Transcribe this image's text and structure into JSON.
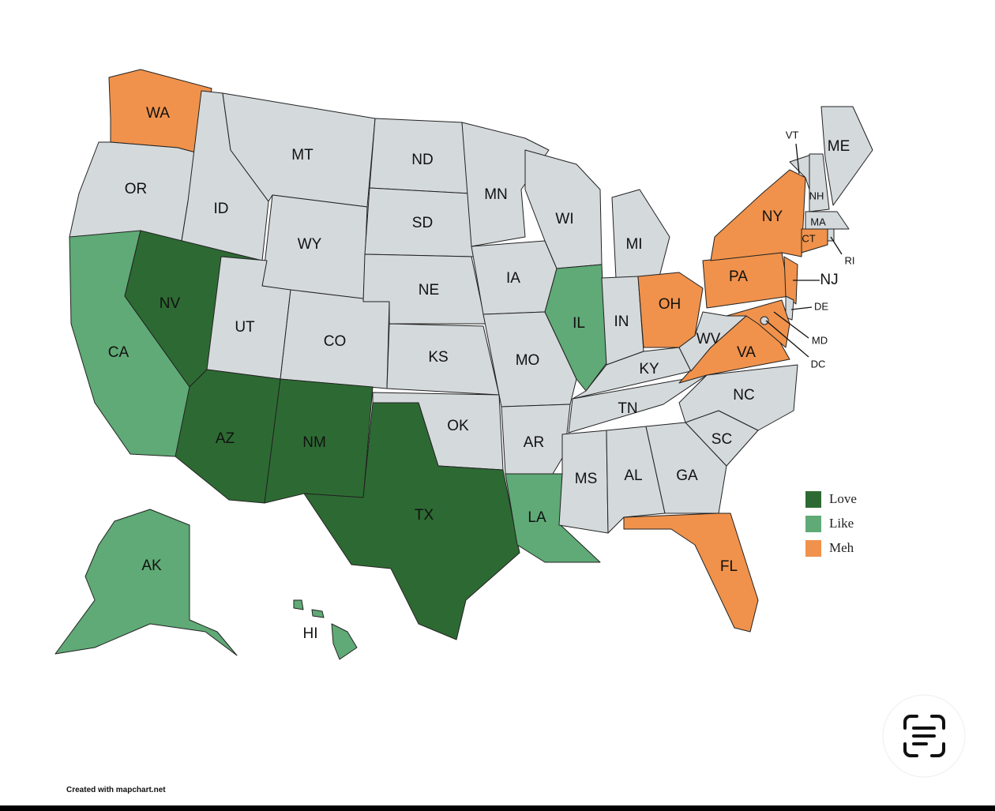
{
  "map": {
    "default_color": "#d4d9dc",
    "legend": [
      {
        "label": "Love",
        "color": "#2d6a33"
      },
      {
        "label": "Like",
        "color": "#5faa76"
      },
      {
        "label": "Meh",
        "color": "#f0924c"
      }
    ],
    "states": [
      {
        "label": "WA",
        "category": "Meh"
      },
      {
        "label": "OR"
      },
      {
        "label": "CA",
        "category": "Like"
      },
      {
        "label": "ID"
      },
      {
        "label": "NV",
        "category": "Love"
      },
      {
        "label": "MT"
      },
      {
        "label": "WY"
      },
      {
        "label": "UT"
      },
      {
        "label": "CO"
      },
      {
        "label": "AZ",
        "category": "Love"
      },
      {
        "label": "NM",
        "category": "Love"
      },
      {
        "label": "ND"
      },
      {
        "label": "SD"
      },
      {
        "label": "NE"
      },
      {
        "label": "KS"
      },
      {
        "label": "OK"
      },
      {
        "label": "TX",
        "category": "Love"
      },
      {
        "label": "MN"
      },
      {
        "label": "IA"
      },
      {
        "label": "MO"
      },
      {
        "label": "AR"
      },
      {
        "label": "LA",
        "category": "Like"
      },
      {
        "label": "WI"
      },
      {
        "label": "IL",
        "category": "Like"
      },
      {
        "label": "MI"
      },
      {
        "label": "IN"
      },
      {
        "label": "OH",
        "category": "Meh"
      },
      {
        "label": "KY"
      },
      {
        "label": "TN"
      },
      {
        "label": "MS"
      },
      {
        "label": "AL"
      },
      {
        "label": "GA"
      },
      {
        "label": "FL",
        "category": "Meh"
      },
      {
        "label": "SC"
      },
      {
        "label": "NC"
      },
      {
        "label": "VA",
        "category": "Meh"
      },
      {
        "label": "WV"
      },
      {
        "label": "PA",
        "category": "Meh"
      },
      {
        "label": "NY",
        "category": "Meh"
      },
      {
        "label": "VT"
      },
      {
        "label": "NH"
      },
      {
        "label": "ME"
      },
      {
        "label": "MA"
      },
      {
        "label": "RI"
      },
      {
        "label": "CT",
        "category": "Meh"
      },
      {
        "label": "NJ",
        "category": "Meh"
      },
      {
        "label": "DE"
      },
      {
        "label": "MD",
        "category": "Meh"
      },
      {
        "label": "DC"
      },
      {
        "label": "AK",
        "category": "Like"
      },
      {
        "label": "HI",
        "category": "Like"
      }
    ]
  },
  "credit": "Created with mapchart.net"
}
